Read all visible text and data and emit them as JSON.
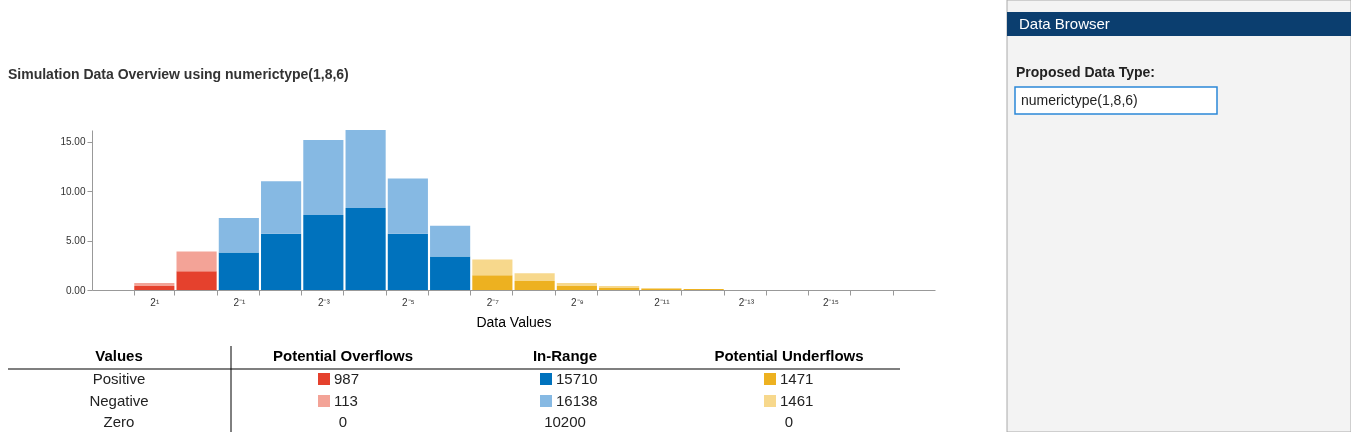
{
  "chart_data": {
    "type": "bar",
    "title": "Simulation Data Overview using numerictype(1,8,6)",
    "xlabel": "Data Values",
    "categories": [
      "2¹",
      null,
      "2⁻¹",
      null,
      "2⁻³",
      null,
      "2⁻⁵",
      null,
      "2⁻⁷",
      null,
      "2⁻⁹",
      null,
      "2⁻¹¹",
      null,
      "2⁻¹³",
      null,
      "2⁻¹⁵",
      null
    ],
    "stacked": true,
    "series": [
      {
        "colors": [
          "#e5412d",
          "#e5412d",
          "#0072bd",
          "#0072bd",
          "#0072bd",
          "#0072bd",
          "#0072bd",
          "#0072bd",
          "#edb120",
          "#edb120",
          "#edb120",
          "#edb120",
          "#edb120",
          "#edb120",
          "#edb120",
          "#edb120",
          "#edb120",
          "#edb120"
        ],
        "values": [
          0.4,
          1.9,
          3.8,
          5.7,
          7.6,
          8.3,
          5.7,
          3.4,
          1.5,
          0.9,
          0.4,
          0.2,
          0.1,
          0.1,
          0,
          0,
          0,
          0
        ]
      },
      {
        "colors": [
          "#f3a397",
          "#f3a397",
          "#86b9e3",
          "#86b9e3",
          "#86b9e3",
          "#86b9e3",
          "#86b9e3",
          "#86b9e3",
          "#f7d88c",
          "#f7d88c",
          "#f7d88c",
          "#f7d88c",
          "#f7d88c",
          "#f7d88c",
          "#f7d88c",
          "#f7d88c",
          "#f7d88c",
          "#f7d88c"
        ],
        "values": [
          0.3,
          2.0,
          3.5,
          5.3,
          7.6,
          7.9,
          5.6,
          3.1,
          1.6,
          0.8,
          0.3,
          0.2,
          0.1,
          0,
          0,
          0,
          0,
          0
        ]
      }
    ],
    "ylim": [
      0,
      16.2
    ],
    "yticks": [
      {
        "value": 0,
        "label": "0.00"
      },
      {
        "value": 5,
        "label": "5.00"
      },
      {
        "value": 10,
        "label": "10.00"
      },
      {
        "value": 15,
        "label": "15.00"
      }
    ],
    "grid": false,
    "annotations": [
      "Values",
      "Potential Overflows",
      "In-Range",
      "Potential Underflows",
      "Positive",
      "Negative",
      "Zero",
      "987",
      "15710",
      "1471",
      "113",
      "16138",
      "1461",
      "0",
      "10200",
      "0",
      "Data Browser",
      "Proposed Data Type:",
      "numerictype(1,8,6)"
    ]
  }
}
